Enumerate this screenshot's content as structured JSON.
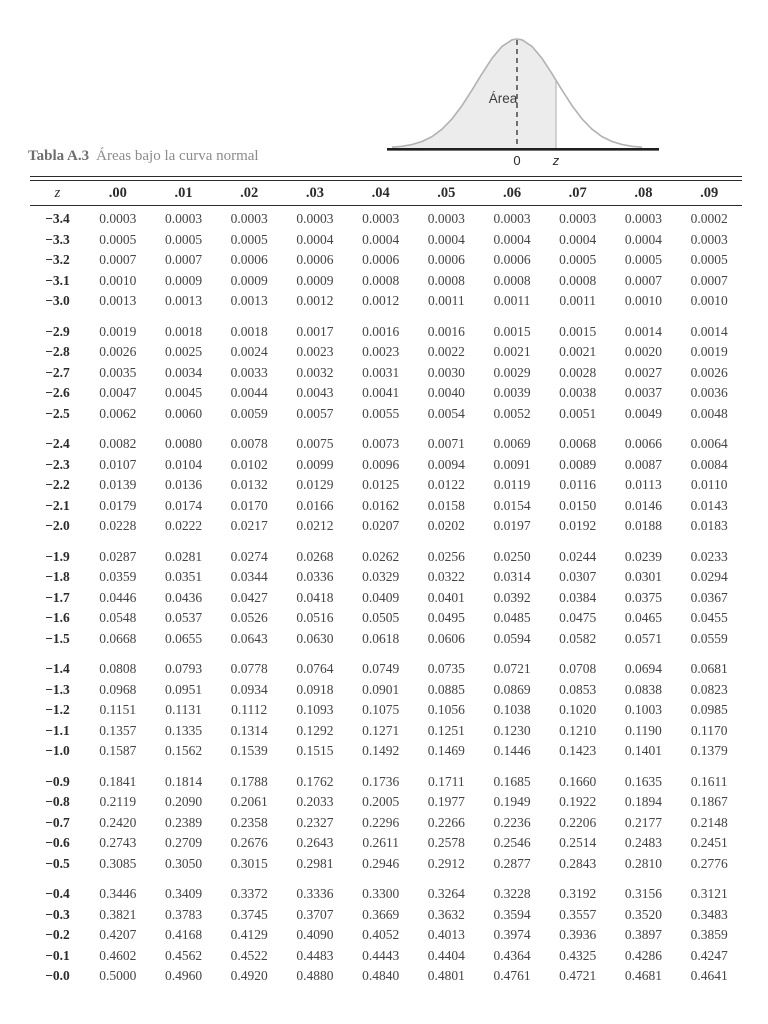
{
  "header": {
    "title_label": "Tabla A.3",
    "title_text": "Áreas bajo la curva normal"
  },
  "figure": {
    "area_label": "Área",
    "zero_label": "0",
    "z_label": "z"
  },
  "colors": {
    "curve_stroke": "#b2b2b2",
    "curve_fill": "#ececec",
    "axis_line": "#1f1f1f",
    "dashed_line": "#3c3c3c",
    "rule": "#2b2b2b",
    "caption_bold": "#6e6e6e",
    "caption_text": "#8b8b8b",
    "cell_text": "#444444"
  },
  "table": {
    "columns": [
      "z",
      ".00",
      ".01",
      ".02",
      ".03",
      ".04",
      ".05",
      ".06",
      ".07",
      ".08",
      ".09"
    ],
    "groups": [
      {
        "rows": [
          {
            "z": "−3.4",
            "values": [
              "0.0003",
              "0.0003",
              "0.0003",
              "0.0003",
              "0.0003",
              "0.0003",
              "0.0003",
              "0.0003",
              "0.0003",
              "0.0002"
            ]
          },
          {
            "z": "−3.3",
            "values": [
              "0.0005",
              "0.0005",
              "0.0005",
              "0.0004",
              "0.0004",
              "0.0004",
              "0.0004",
              "0.0004",
              "0.0004",
              "0.0003"
            ]
          },
          {
            "z": "−3.2",
            "values": [
              "0.0007",
              "0.0007",
              "0.0006",
              "0.0006",
              "0.0006",
              "0.0006",
              "0.0006",
              "0.0005",
              "0.0005",
              "0.0005"
            ]
          },
          {
            "z": "−3.1",
            "values": [
              "0.0010",
              "0.0009",
              "0.0009",
              "0.0009",
              "0.0008",
              "0.0008",
              "0.0008",
              "0.0008",
              "0.0007",
              "0.0007"
            ]
          },
          {
            "z": "−3.0",
            "values": [
              "0.0013",
              "0.0013",
              "0.0013",
              "0.0012",
              "0.0012",
              "0.0011",
              "0.0011",
              "0.0011",
              "0.0010",
              "0.0010"
            ]
          }
        ]
      },
      {
        "rows": [
          {
            "z": "−2.9",
            "values": [
              "0.0019",
              "0.0018",
              "0.0018",
              "0.0017",
              "0.0016",
              "0.0016",
              "0.0015",
              "0.0015",
              "0.0014",
              "0.0014"
            ]
          },
          {
            "z": "−2.8",
            "values": [
              "0.0026",
              "0.0025",
              "0.0024",
              "0.0023",
              "0.0023",
              "0.0022",
              "0.0021",
              "0.0021",
              "0.0020",
              "0.0019"
            ]
          },
          {
            "z": "−2.7",
            "values": [
              "0.0035",
              "0.0034",
              "0.0033",
              "0.0032",
              "0.0031",
              "0.0030",
              "0.0029",
              "0.0028",
              "0.0027",
              "0.0026"
            ]
          },
          {
            "z": "−2.6",
            "values": [
              "0.0047",
              "0.0045",
              "0.0044",
              "0.0043",
              "0.0041",
              "0.0040",
              "0.0039",
              "0.0038",
              "0.0037",
              "0.0036"
            ]
          },
          {
            "z": "−2.5",
            "values": [
              "0.0062",
              "0.0060",
              "0.0059",
              "0.0057",
              "0.0055",
              "0.0054",
              "0.0052",
              "0.0051",
              "0.0049",
              "0.0048"
            ]
          }
        ]
      },
      {
        "rows": [
          {
            "z": "−2.4",
            "values": [
              "0.0082",
              "0.0080",
              "0.0078",
              "0.0075",
              "0.0073",
              "0.0071",
              "0.0069",
              "0.0068",
              "0.0066",
              "0.0064"
            ]
          },
          {
            "z": "−2.3",
            "values": [
              "0.0107",
              "0.0104",
              "0.0102",
              "0.0099",
              "0.0096",
              "0.0094",
              "0.0091",
              "0.0089",
              "0.0087",
              "0.0084"
            ]
          },
          {
            "z": "−2.2",
            "values": [
              "0.0139",
              "0.0136",
              "0.0132",
              "0.0129",
              "0.0125",
              "0.0122",
              "0.0119",
              "0.0116",
              "0.0113",
              "0.0110"
            ]
          },
          {
            "z": "−2.1",
            "values": [
              "0.0179",
              "0.0174",
              "0.0170",
              "0.0166",
              "0.0162",
              "0.0158",
              "0.0154",
              "0.0150",
              "0.0146",
              "0.0143"
            ]
          },
          {
            "z": "−2.0",
            "values": [
              "0.0228",
              "0.0222",
              "0.0217",
              "0.0212",
              "0.0207",
              "0.0202",
              "0.0197",
              "0.0192",
              "0.0188",
              "0.0183"
            ]
          }
        ]
      },
      {
        "rows": [
          {
            "z": "−1.9",
            "values": [
              "0.0287",
              "0.0281",
              "0.0274",
              "0.0268",
              "0.0262",
              "0.0256",
              "0.0250",
              "0.0244",
              "0.0239",
              "0.0233"
            ]
          },
          {
            "z": "−1.8",
            "values": [
              "0.0359",
              "0.0351",
              "0.0344",
              "0.0336",
              "0.0329",
              "0.0322",
              "0.0314",
              "0.0307",
              "0.0301",
              "0.0294"
            ]
          },
          {
            "z": "−1.7",
            "values": [
              "0.0446",
              "0.0436",
              "0.0427",
              "0.0418",
              "0.0409",
              "0.0401",
              "0.0392",
              "0.0384",
              "0.0375",
              "0.0367"
            ]
          },
          {
            "z": "−1.6",
            "values": [
              "0.0548",
              "0.0537",
              "0.0526",
              "0.0516",
              "0.0505",
              "0.0495",
              "0.0485",
              "0.0475",
              "0.0465",
              "0.0455"
            ]
          },
          {
            "z": "−1.5",
            "values": [
              "0.0668",
              "0.0655",
              "0.0643",
              "0.0630",
              "0.0618",
              "0.0606",
              "0.0594",
              "0.0582",
              "0.0571",
              "0.0559"
            ]
          }
        ]
      },
      {
        "rows": [
          {
            "z": "−1.4",
            "values": [
              "0.0808",
              "0.0793",
              "0.0778",
              "0.0764",
              "0.0749",
              "0.0735",
              "0.0721",
              "0.0708",
              "0.0694",
              "0.0681"
            ]
          },
          {
            "z": "−1.3",
            "values": [
              "0.0968",
              "0.0951",
              "0.0934",
              "0.0918",
              "0.0901",
              "0.0885",
              "0.0869",
              "0.0853",
              "0.0838",
              "0.0823"
            ]
          },
          {
            "z": "−1.2",
            "values": [
              "0.1151",
              "0.1131",
              "0.1112",
              "0.1093",
              "0.1075",
              "0.1056",
              "0.1038",
              "0.1020",
              "0.1003",
              "0.0985"
            ]
          },
          {
            "z": "−1.1",
            "values": [
              "0.1357",
              "0.1335",
              "0.1314",
              "0.1292",
              "0.1271",
              "0.1251",
              "0.1230",
              "0.1210",
              "0.1190",
              "0.1170"
            ]
          },
          {
            "z": "−1.0",
            "values": [
              "0.1587",
              "0.1562",
              "0.1539",
              "0.1515",
              "0.1492",
              "0.1469",
              "0.1446",
              "0.1423",
              "0.1401",
              "0.1379"
            ]
          }
        ]
      },
      {
        "rows": [
          {
            "z": "−0.9",
            "values": [
              "0.1841",
              "0.1814",
              "0.1788",
              "0.1762",
              "0.1736",
              "0.1711",
              "0.1685",
              "0.1660",
              "0.1635",
              "0.1611"
            ]
          },
          {
            "z": "−0.8",
            "values": [
              "0.2119",
              "0.2090",
              "0.2061",
              "0.2033",
              "0.2005",
              "0.1977",
              "0.1949",
              "0.1922",
              "0.1894",
              "0.1867"
            ]
          },
          {
            "z": "−0.7",
            "values": [
              "0.2420",
              "0.2389",
              "0.2358",
              "0.2327",
              "0.2296",
              "0.2266",
              "0.2236",
              "0.2206",
              "0.2177",
              "0.2148"
            ]
          },
          {
            "z": "−0.6",
            "values": [
              "0.2743",
              "0.2709",
              "0.2676",
              "0.2643",
              "0.2611",
              "0.2578",
              "0.2546",
              "0.2514",
              "0.2483",
              "0.2451"
            ]
          },
          {
            "z": "−0.5",
            "values": [
              "0.3085",
              "0.3050",
              "0.3015",
              "0.2981",
              "0.2946",
              "0.2912",
              "0.2877",
              "0.2843",
              "0.2810",
              "0.2776"
            ]
          }
        ]
      },
      {
        "rows": [
          {
            "z": "−0.4",
            "values": [
              "0.3446",
              "0.3409",
              "0.3372",
              "0.3336",
              "0.3300",
              "0.3264",
              "0.3228",
              "0.3192",
              "0.3156",
              "0.3121"
            ]
          },
          {
            "z": "−0.3",
            "values": [
              "0.3821",
              "0.3783",
              "0.3745",
              "0.3707",
              "0.3669",
              "0.3632",
              "0.3594",
              "0.3557",
              "0.3520",
              "0.3483"
            ]
          },
          {
            "z": "−0.2",
            "values": [
              "0.4207",
              "0.4168",
              "0.4129",
              "0.4090",
              "0.4052",
              "0.4013",
              "0.3974",
              "0.3936",
              "0.3897",
              "0.3859"
            ]
          },
          {
            "z": "−0.1",
            "values": [
              "0.4602",
              "0.4562",
              "0.4522",
              "0.4483",
              "0.4443",
              "0.4404",
              "0.4364",
              "0.4325",
              "0.4286",
              "0.4247"
            ]
          },
          {
            "z": "−0.0",
            "values": [
              "0.5000",
              "0.4960",
              "0.4920",
              "0.4880",
              "0.4840",
              "0.4801",
              "0.4761",
              "0.4721",
              "0.4681",
              "0.4641"
            ]
          }
        ]
      }
    ]
  }
}
